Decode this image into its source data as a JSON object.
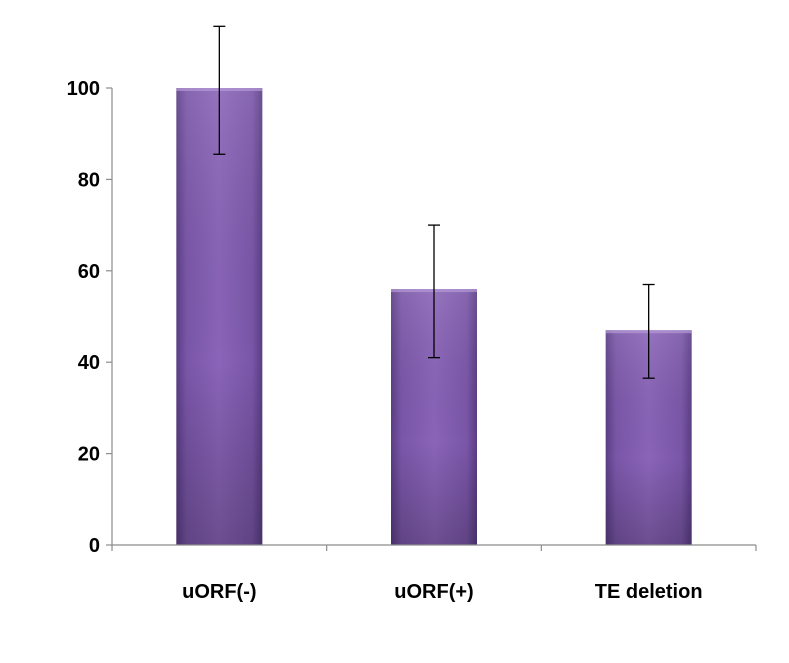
{
  "chart_data": {
    "type": "bar",
    "title": "",
    "xlabel": "",
    "ylabel": "",
    "categories": [
      "uORF(-)",
      "uORF(+)",
      "TE deletion"
    ],
    "values": [
      100,
      56,
      47
    ],
    "error_low": [
      85.5,
      41,
      36.5
    ],
    "error_high": [
      113.5,
      70,
      57
    ],
    "ylim": [
      0,
      100
    ],
    "yticks": [
      0,
      20,
      40,
      60,
      80,
      100
    ],
    "ytick_labels": [
      "0",
      "20",
      "40",
      "60",
      "80",
      "100"
    ],
    "grid": false,
    "legend": false
  },
  "colors": {
    "bar_center": "#8a64b8",
    "bar_edge": "#5a3d84",
    "axis": "#8c8c8c",
    "error_bar": "#000000",
    "text": "#000000"
  }
}
